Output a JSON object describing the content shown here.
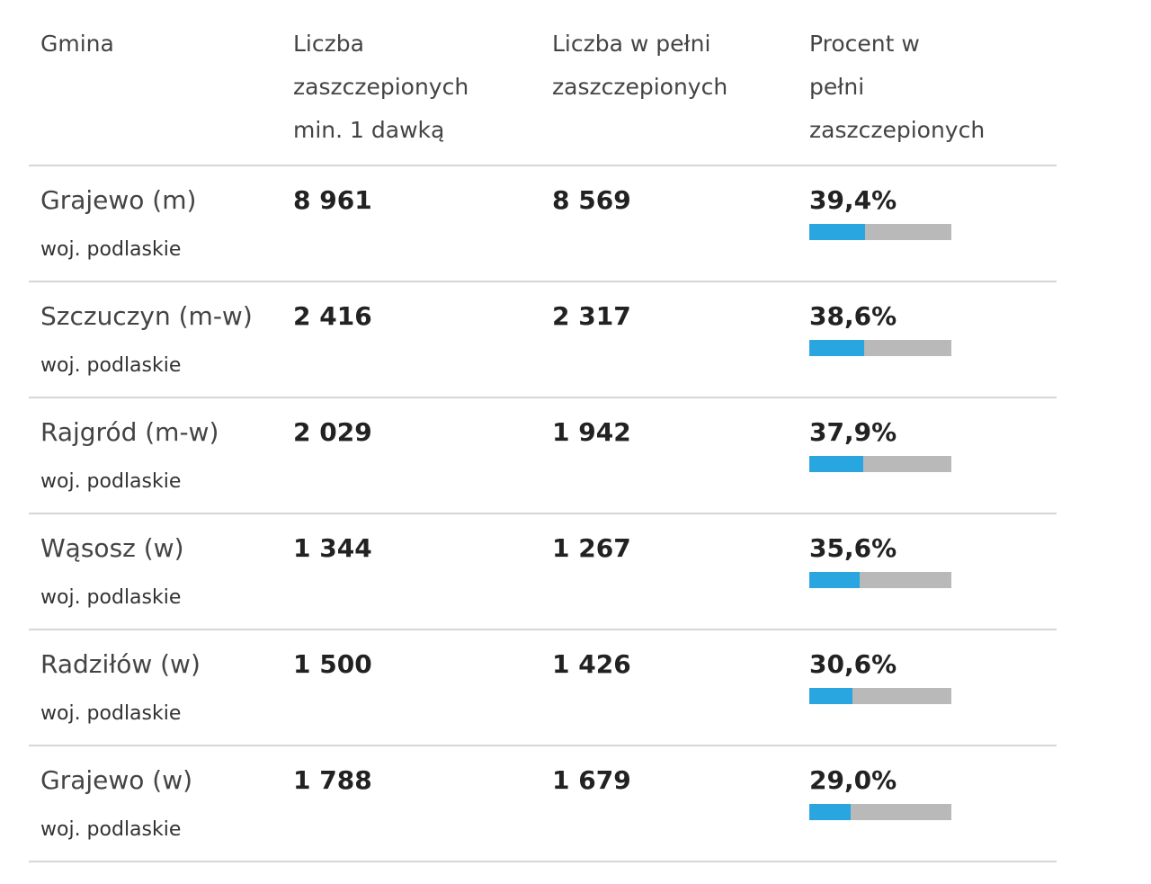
{
  "table": {
    "header": [
      [
        "Gmina"
      ],
      [
        "Liczba",
        "zaszczepionych",
        "min. 1 dawką"
      ],
      [
        "Liczba w pełni",
        "zaszczepionych"
      ],
      [
        "Procent w",
        "pełni",
        "zaszczepionych"
      ]
    ],
    "percent_xlim": [
      0,
      100
    ],
    "rows": [
      {
        "name": "Grajewo (m)",
        "region": "woj. podlaskie",
        "first_dose": "8 961",
        "full": "8 569",
        "percent": {
          "value": 39.4,
          "label": "39,4%"
        }
      },
      {
        "name": "Szczuczyn (m-w)",
        "region": "woj. podlaskie",
        "first_dose": "2 416",
        "full": "2 317",
        "percent": {
          "value": 38.6,
          "label": "38,6%"
        }
      },
      {
        "name": "Rajgród (m-w)",
        "region": "woj. podlaskie",
        "first_dose": "2 029",
        "full": "1 942",
        "percent": {
          "value": 37.9,
          "label": "37,9%"
        }
      },
      {
        "name": "Wąsosz (w)",
        "region": "woj. podlaskie",
        "first_dose": "1 344",
        "full": "1 267",
        "percent": {
          "value": 35.6,
          "label": "35,6%"
        }
      },
      {
        "name": "Radziłów (w)",
        "region": "woj. podlaskie",
        "first_dose": "1 500",
        "full": "1 426",
        "percent": {
          "value": 30.6,
          "label": "30,6%"
        }
      },
      {
        "name": "Grajewo (w)",
        "region": "woj. podlaskie",
        "first_dose": "1 788",
        "full": "1 679",
        "percent": {
          "value": 29.0,
          "label": "29,0%"
        }
      }
    ]
  }
}
